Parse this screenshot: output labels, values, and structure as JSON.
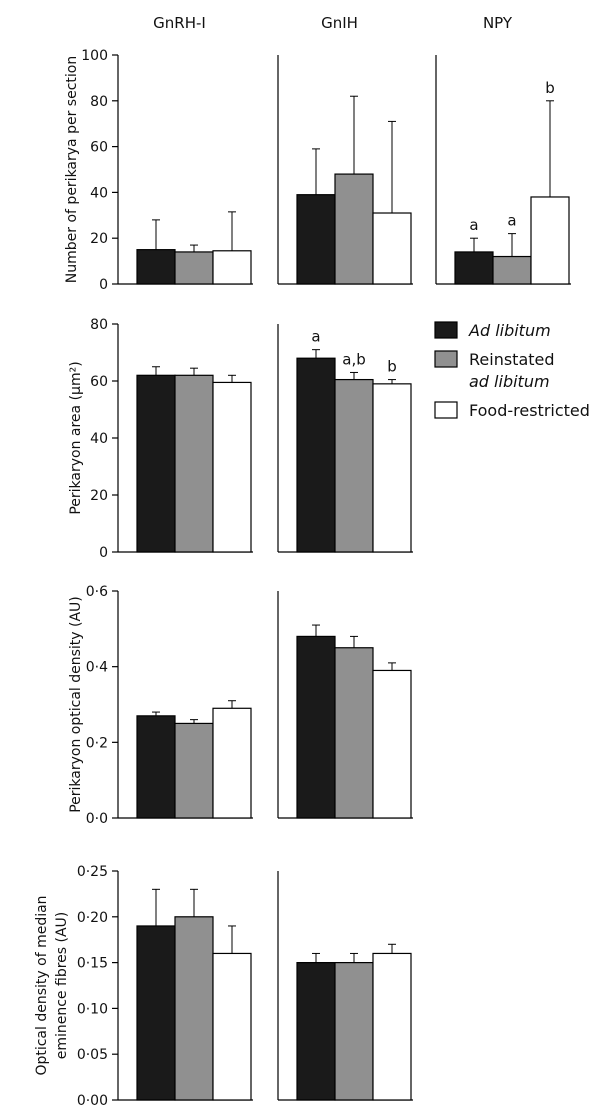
{
  "chart_data": {
    "type": "bar",
    "columns": [
      "GnRH-I",
      "GnIH",
      "NPY"
    ],
    "series_colors": [
      "#1a1a1a",
      "#909090",
      "#ffffff"
    ],
    "legend": {
      "placement": "right of second row",
      "entries": [
        {
          "lines": [
            "Ad libitum"
          ],
          "italic": [
            true
          ]
        },
        {
          "lines": [
            "Reinstated",
            "ad libitum"
          ],
          "italic": [
            false,
            true
          ]
        },
        {
          "lines": [
            "Food-restricted"
          ],
          "italic": [
            false
          ]
        }
      ]
    },
    "rows": [
      {
        "ylabel_lines": [
          "Number of perikarya per section"
        ],
        "ylim": [
          0,
          100
        ],
        "ticks": [
          0,
          20,
          40,
          60,
          80,
          100
        ],
        "tick_labels": [
          "0",
          "20",
          "40",
          "60",
          "80",
          "100"
        ],
        "panels": [
          {
            "column": "GnRH-I",
            "values": [
              15,
              14,
              14.5
            ],
            "errors": [
              13,
              3,
              17
            ],
            "letters": [
              "",
              "",
              ""
            ]
          },
          {
            "column": "GnIH",
            "values": [
              39,
              48,
              31
            ],
            "errors": [
              20,
              34,
              40
            ],
            "letters": [
              "",
              "",
              ""
            ]
          },
          {
            "column": "NPY",
            "values": [
              14,
              12,
              38
            ],
            "errors": [
              6,
              10,
              42
            ],
            "letters": [
              "a",
              "a",
              "b"
            ]
          }
        ]
      },
      {
        "ylabel_lines": [
          "Perikaryon area (μm²)"
        ],
        "ylim": [
          0,
          80
        ],
        "ticks": [
          0,
          20,
          40,
          60,
          80
        ],
        "tick_labels": [
          "0",
          "20",
          "40",
          "60",
          "80"
        ],
        "panels": [
          {
            "column": "GnRH-I",
            "values": [
              62,
              62,
              59.5
            ],
            "errors": [
              3,
              2.5,
              2.5
            ],
            "letters": [
              "",
              "",
              ""
            ]
          },
          {
            "column": "GnIH",
            "values": [
              68,
              60.5,
              59
            ],
            "errors": [
              3,
              2.5,
              1.5
            ],
            "letters": [
              "a",
              "a,b",
              "b"
            ]
          }
        ]
      },
      {
        "ylabel_lines": [
          "Perikaryon optical density (AU)"
        ],
        "ylim": [
          0,
          0.6
        ],
        "ticks": [
          0,
          0.2,
          0.4,
          0.6
        ],
        "tick_labels": [
          "0·0",
          "0·2",
          "0·4",
          "0·6"
        ],
        "panels": [
          {
            "column": "GnRH-I",
            "values": [
              0.27,
              0.25,
              0.29
            ],
            "errors": [
              0.01,
              0.01,
              0.02
            ],
            "letters": [
              "",
              "",
              ""
            ]
          },
          {
            "column": "GnIH",
            "values": [
              0.48,
              0.45,
              0.39
            ],
            "errors": [
              0.03,
              0.03,
              0.02
            ],
            "letters": [
              "",
              "",
              ""
            ]
          }
        ]
      },
      {
        "ylabel_lines": [
          "Optical density of median",
          "eminence fibres (AU)"
        ],
        "ylim": [
          0,
          0.25
        ],
        "ticks": [
          0,
          0.05,
          0.1,
          0.15,
          0.2,
          0.25
        ],
        "tick_labels": [
          "0·00",
          "0·05",
          "0·10",
          "0·15",
          "0·20",
          "0·25"
        ],
        "panels": [
          {
            "column": "GnRH-I",
            "values": [
              0.19,
              0.2,
              0.16
            ],
            "errors": [
              0.04,
              0.03,
              0.03
            ],
            "letters": [
              "",
              "",
              ""
            ]
          },
          {
            "column": "GnIH",
            "values": [
              0.15,
              0.15,
              0.16
            ],
            "errors": [
              0.01,
              0.01,
              0.01
            ],
            "letters": [
              "",
              "",
              ""
            ]
          }
        ]
      }
    ]
  }
}
